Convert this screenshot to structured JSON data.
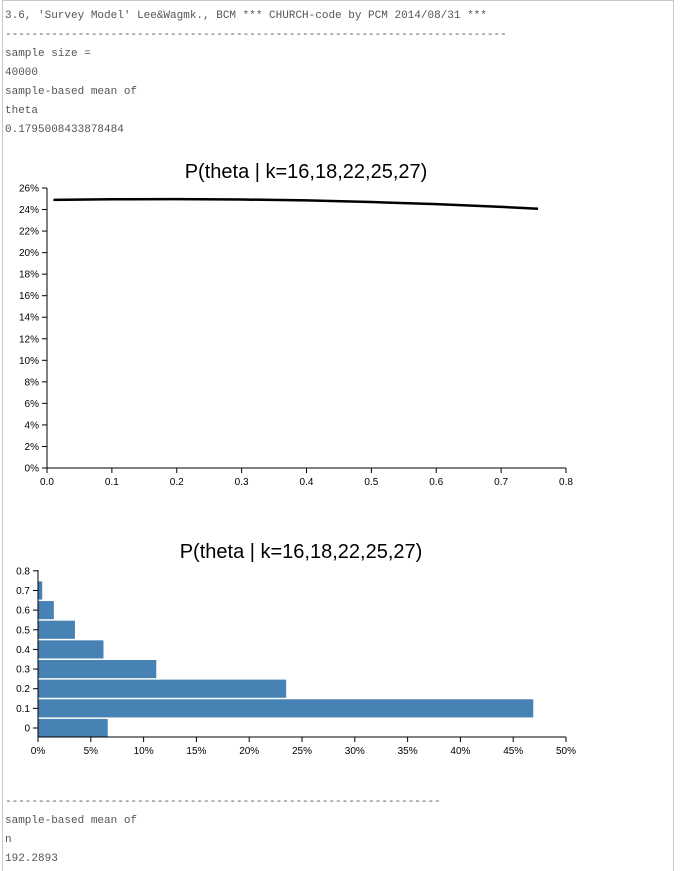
{
  "output": {
    "header_line": "3.6, 'Survey Model' Lee&Wagmk., BCM *** CHURCH-code by PCM 2014/08/31 ***",
    "separator_1": "----------------------------------------------------------------------------",
    "sample_size_label": "sample size =",
    "sample_size_value": "40000",
    "mean_label_1": "sample-based mean of",
    "mean_var_1": "theta",
    "mean_value_1": "0.1795008433878484",
    "separator_2": "------------------------------------------------------------------",
    "mean_label_2": "sample-based mean of",
    "mean_var_2": "n",
    "mean_value_2": "192.2893"
  },
  "colors": {
    "line": "#000000",
    "bar": "#4682b4",
    "text": "#555555"
  },
  "chart_data": [
    {
      "type": "line",
      "title": "P(theta | k=16,18,22,25,27)",
      "xlabel": "",
      "ylabel": "",
      "xlim": [
        0,
        0.8
      ],
      "ylim": [
        0,
        0.26
      ],
      "x_ticks": [
        "0.0",
        "0.1",
        "0.2",
        "0.3",
        "0.4",
        "0.5",
        "0.6",
        "0.7",
        "0.8"
      ],
      "y_ticks": [
        "0%",
        "2%",
        "4%",
        "6%",
        "8%",
        "10%",
        "12%",
        "14%",
        "16%",
        "18%",
        "20%",
        "22%",
        "24%",
        "26%"
      ],
      "grid": false,
      "x": [
        0.01,
        0.1,
        0.2,
        0.3,
        0.4,
        0.5,
        0.6,
        0.7,
        0.757
      ],
      "y": [
        0.249,
        0.2495,
        0.2497,
        0.2493,
        0.2485,
        0.247,
        0.245,
        0.2425,
        0.2407
      ]
    },
    {
      "type": "bar",
      "orientation": "horizontal",
      "title": "P(theta | k=16,18,22,25,27)",
      "xlabel": "",
      "ylabel": "",
      "xlim": [
        0,
        0.5
      ],
      "x_ticks": [
        "0%",
        "5%",
        "10%",
        "15%",
        "20%",
        "25%",
        "30%",
        "35%",
        "40%",
        "45%",
        "50%"
      ],
      "grid": false,
      "categories": [
        "0",
        "0.1",
        "0.2",
        "0.3",
        "0.4",
        "0.5",
        "0.6",
        "0.7",
        "0.8"
      ],
      "values": [
        0.066,
        0.469,
        0.235,
        0.112,
        0.062,
        0.035,
        0.015,
        0.004,
        0.0
      ]
    }
  ]
}
